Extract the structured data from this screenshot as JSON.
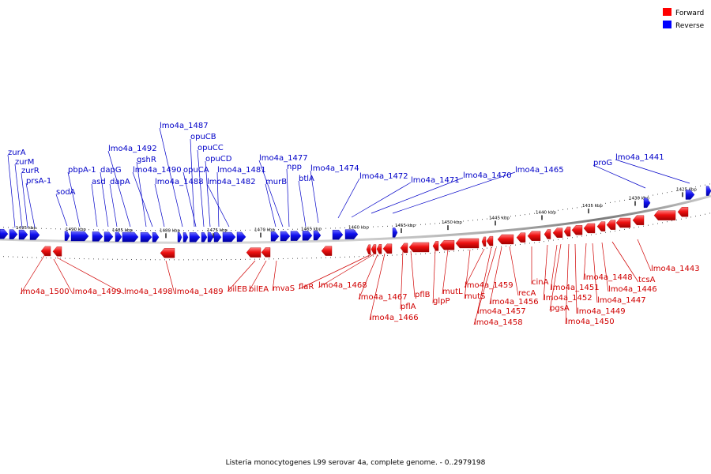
{
  "title": "Listeria monocytogenes L99 serovar 4a, complete genome. - 0..2979198",
  "legend": {
    "forward_label": "Forward",
    "reverse_label": "Reverse",
    "forward_color": "#ff0000",
    "reverse_color": "#0000ff"
  },
  "ticks": [
    "1495 kbp",
    "1490 kbp",
    "1485 kbp",
    "1480 kbp",
    "1475 kbp",
    "1470 kbp",
    "1465 kbp",
    "1460 kbp",
    "1455 kbp",
    "1450 kbp",
    "1445 kbp",
    "1440 kbp",
    "1435 kbp",
    "1430 kbp",
    "1425 kbp"
  ],
  "reverse_genes": [
    "zurA",
    "zurM",
    "zurR",
    "prsA-1",
    "sodA",
    "pbpA-1",
    "asd",
    "dapG",
    "dapA",
    "lmo4a_1492",
    "gshR",
    "lmo4a_1490",
    "lmo4a_1488",
    "lmo4a_1487",
    "opuCB",
    "opuCA",
    "opuCC",
    "opuCD",
    "lmo4a_1481",
    "lmo4a_1482",
    "murB",
    "lmo4a_1477",
    "npp",
    "btlA",
    "lmo4a_1474",
    "lmo4a_1472",
    "lmo4a_1471",
    "lmo4a_1470",
    "lmo4a_1465",
    "proG",
    "lmo4a_1441"
  ],
  "forward_genes": [
    "lmo4a_1500",
    "lmo4a_1499",
    "lmo4a_1498",
    "lmo4a_1489",
    "bilEB",
    "bilEA",
    "mvaS",
    "flaR",
    "lmo4a_1468",
    "lmo4a_1467",
    "lmo4a_1466",
    "pflA",
    "pflB",
    "glpP",
    "mutL",
    "mutS",
    "lmo4a_1459",
    "lmo4a_1457",
    "lmo4a_1458",
    "lmo4a_1456",
    "recA",
    "cinA",
    "lmo4a_1452",
    "lmo4a_1451",
    "pgsA",
    "lmo4a_1449",
    "lmo4a_1450",
    "lmo4a_1448",
    "lmo4a_1447",
    "lmo4a_1446",
    "tcsA",
    "lmo4a_1443"
  ]
}
